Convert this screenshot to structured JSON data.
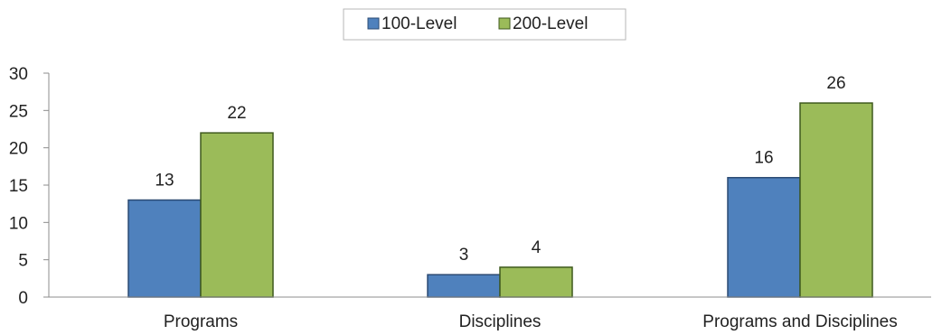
{
  "chart_data": {
    "type": "bar",
    "categories": [
      "Programs",
      "Disciplines",
      "Programs and Disciplines"
    ],
    "series": [
      {
        "name": "100-Level",
        "values": [
          13,
          3,
          16
        ],
        "color": "#4F81BD",
        "stroke": "#2B4A73"
      },
      {
        "name": "200-Level",
        "values": [
          22,
          4,
          26
        ],
        "color": "#9BBB59",
        "stroke": "#3F5A1E"
      }
    ],
    "ylim": [
      0,
      30
    ],
    "yticks": [
      0,
      5,
      10,
      15,
      20,
      25,
      30
    ],
    "grid": false,
    "legend": "top-center",
    "data_labels": true
  }
}
